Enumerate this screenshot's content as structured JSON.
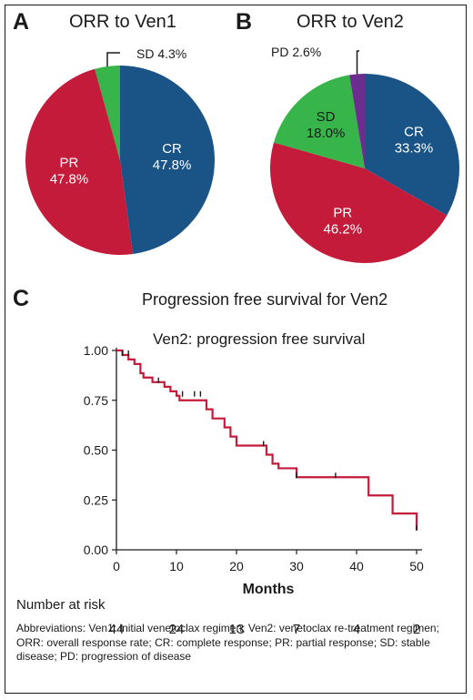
{
  "panels": {
    "a": "A",
    "b": "B",
    "c": "C"
  },
  "chart_data": [
    {
      "type": "pie",
      "title": "ORR to Ven1",
      "slices": [
        {
          "name": "CR",
          "value": 47.8,
          "label": "47.8%",
          "color": "#1a5486"
        },
        {
          "name": "PR",
          "value": 47.8,
          "label": "47.8%",
          "color": "#c41b3a"
        },
        {
          "name": "SD",
          "value": 4.3,
          "label": "4.3%",
          "color": "#37b44a"
        }
      ]
    },
    {
      "type": "pie",
      "title": "ORR to Ven2",
      "slices": [
        {
          "name": "CR",
          "value": 33.3,
          "label": "33.3%",
          "color": "#1a5486"
        },
        {
          "name": "PR",
          "value": 46.2,
          "label": "46.2%",
          "color": "#c41b3a"
        },
        {
          "name": "SD",
          "value": 18.0,
          "label": "18.0%",
          "color": "#37b44a"
        },
        {
          "name": "PD",
          "value": 2.6,
          "label": "2.6%",
          "color": "#6b2d8e"
        }
      ]
    },
    {
      "type": "line",
      "title": "Progression free survival for Ven2",
      "subtitle": "Ven2: progression free survival",
      "xlabel": "Months",
      "xlim": [
        0,
        50
      ],
      "ylim": [
        0,
        1
      ],
      "xticks": [
        "0",
        "10",
        "20",
        "30",
        "40",
        "50"
      ],
      "yticks": [
        "0.00",
        "0.25",
        "0.50",
        "0.75",
        "1.00"
      ],
      "line_color": "#c41b3a",
      "step_curve": [
        [
          0,
          1.0
        ],
        [
          1,
          0.977
        ],
        [
          2,
          0.955
        ],
        [
          3,
          0.932
        ],
        [
          4,
          0.886
        ],
        [
          4.5,
          0.864
        ],
        [
          6,
          0.841
        ],
        [
          8,
          0.818
        ],
        [
          9,
          0.795
        ],
        [
          10,
          0.773
        ],
        [
          10.5,
          0.75
        ],
        [
          15,
          0.705
        ],
        [
          16,
          0.659
        ],
        [
          18,
          0.614
        ],
        [
          19,
          0.568
        ],
        [
          20,
          0.523
        ],
        [
          25,
          0.477
        ],
        [
          26,
          0.432
        ],
        [
          27,
          0.409
        ],
        [
          30,
          0.364
        ],
        [
          42,
          0.273
        ],
        [
          46,
          0.182
        ],
        [
          50,
          0.1
        ]
      ],
      "censor_marks": [
        [
          1,
          0.977
        ],
        [
          2,
          0.977
        ],
        [
          7,
          0.841
        ],
        [
          11,
          0.773
        ],
        [
          13,
          0.773
        ],
        [
          14,
          0.773
        ],
        [
          24.5,
          0.523
        ],
        [
          30,
          0.364
        ],
        [
          36.5,
          0.364
        ],
        [
          50,
          0.1
        ]
      ]
    }
  ],
  "risk_table": {
    "title": "Number at risk",
    "times": [
      0,
      10,
      20,
      30,
      40,
      50
    ],
    "values": [
      "44",
      "24",
      "13",
      "7",
      "4",
      "2"
    ]
  },
  "footnote": "Abbreviations: Ven1: initial venetoclax regimen; Ven2: venetoclax re-treatment regimen; ORR: overall response rate; CR: complete response; PR: partial response; SD: stable disease; PD: progression of disease"
}
